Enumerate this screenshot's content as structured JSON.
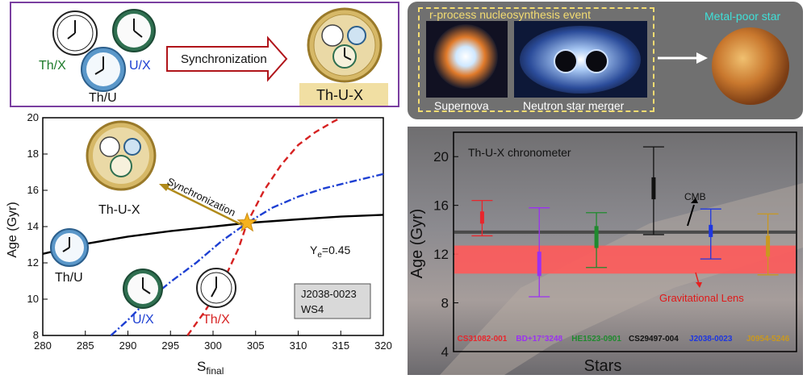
{
  "top_left": {
    "labels": [
      "Th/X",
      "U/X",
      "Th/U"
    ],
    "arrow_label": "Synchronization",
    "result_label": "Th-U-X"
  },
  "top_right": {
    "event_title": "r-process nucleosynthesis event",
    "supernova_label": "Supernova",
    "merger_label": "Neutron star merger",
    "star_label": "Metal-poor star"
  },
  "left_chart": {
    "type": "line",
    "xlabel": "S_final",
    "ylabel": "Age (Gyr)",
    "xlim": [
      280,
      320
    ],
    "ylim": [
      8,
      20
    ],
    "xticks": [
      280,
      285,
      290,
      295,
      300,
      305,
      310,
      315,
      320
    ],
    "yticks": [
      8,
      10,
      12,
      14,
      16,
      18,
      20
    ],
    "ye_label": "Y_e=0.45",
    "ye_text_main": "Y",
    "ye_text_sub": "e",
    "ye_text_rest": "=0.45",
    "box_lines": [
      "J2038-0023",
      "WS4"
    ],
    "sync_label": "Synchronization",
    "clock_labels": {
      "thux": "Th-U-X",
      "thu": "Th/U",
      "ux": "U/X",
      "thx": "Th/X"
    },
    "colors": {
      "thu": "#000000",
      "ux": "#1d3fd2",
      "thx": "#d62222",
      "star": "#f5b21e"
    }
  },
  "chart_data": {
    "type": "line",
    "title": "",
    "xlabel": "S_final",
    "ylabel": "Age (Gyr)",
    "xlim": [
      280,
      320
    ],
    "ylim": [
      8,
      20
    ],
    "series": [
      {
        "name": "Th/U",
        "x": [
          280,
          285,
          290,
          295,
          300,
          304,
          310,
          315,
          320
        ],
        "y": [
          12.5,
          13.05,
          13.45,
          13.75,
          14.0,
          14.2,
          14.4,
          14.55,
          14.65
        ]
      },
      {
        "name": "U/X",
        "x": [
          288,
          290,
          292,
          295,
          298,
          301,
          304,
          307,
          310,
          313,
          316,
          320
        ],
        "y": [
          8.0,
          8.85,
          9.8,
          10.95,
          12.0,
          13.2,
          14.2,
          15.05,
          15.65,
          16.1,
          16.45,
          16.9
        ]
      },
      {
        "name": "Th/X",
        "x": [
          297,
          299,
          301,
          303,
          304,
          306,
          308,
          310,
          312,
          314,
          315
        ],
        "y": [
          8.0,
          9.3,
          10.8,
          12.8,
          14.2,
          16.0,
          17.4,
          18.5,
          19.2,
          19.75,
          20.0
        ]
      }
    ],
    "intersection": {
      "x": 304,
      "y": 14.2
    }
  },
  "right_chart": {
    "type": "errorbar",
    "xlabel": "Stars",
    "ylabel": "Age (Gyr)",
    "ylim": [
      4,
      22
    ],
    "yticks": [
      4,
      8,
      12,
      16,
      20
    ],
    "title": "Th-U-X chronometer",
    "cmb_label": "CMB",
    "cmb_value": 13.8,
    "lens_label": "Gravitational Lens",
    "lens_range": [
      10.4,
      12.7
    ],
    "stars": [
      {
        "name": "CS31082-001",
        "color": "#e8262c",
        "low": 13.5,
        "high": 16.4,
        "box_low": 14.5,
        "box_high": 15.5
      },
      {
        "name": "BD+17°3248",
        "color": "#9b30f2",
        "low": 8.5,
        "high": 15.8,
        "box_low": 10.2,
        "box_high": 12.2
      },
      {
        "name": "HE1523-0901",
        "color": "#1f8a2e",
        "low": 10.9,
        "high": 15.4,
        "box_low": 12.5,
        "box_high": 14.3
      },
      {
        "name": "CS29497-004",
        "color": "#111111",
        "low": 13.6,
        "high": 20.8,
        "box_low": 16.5,
        "box_high": 18.3
      },
      {
        "name": "J2038-0023",
        "color": "#1e36e0",
        "low": 11.6,
        "high": 15.7,
        "box_low": 13.4,
        "box_high": 14.4
      },
      {
        "name": "J0954-5246",
        "color": "#c99820",
        "low": 10.3,
        "high": 15.3,
        "box_low": 11.8,
        "box_high": 13.5
      }
    ]
  }
}
